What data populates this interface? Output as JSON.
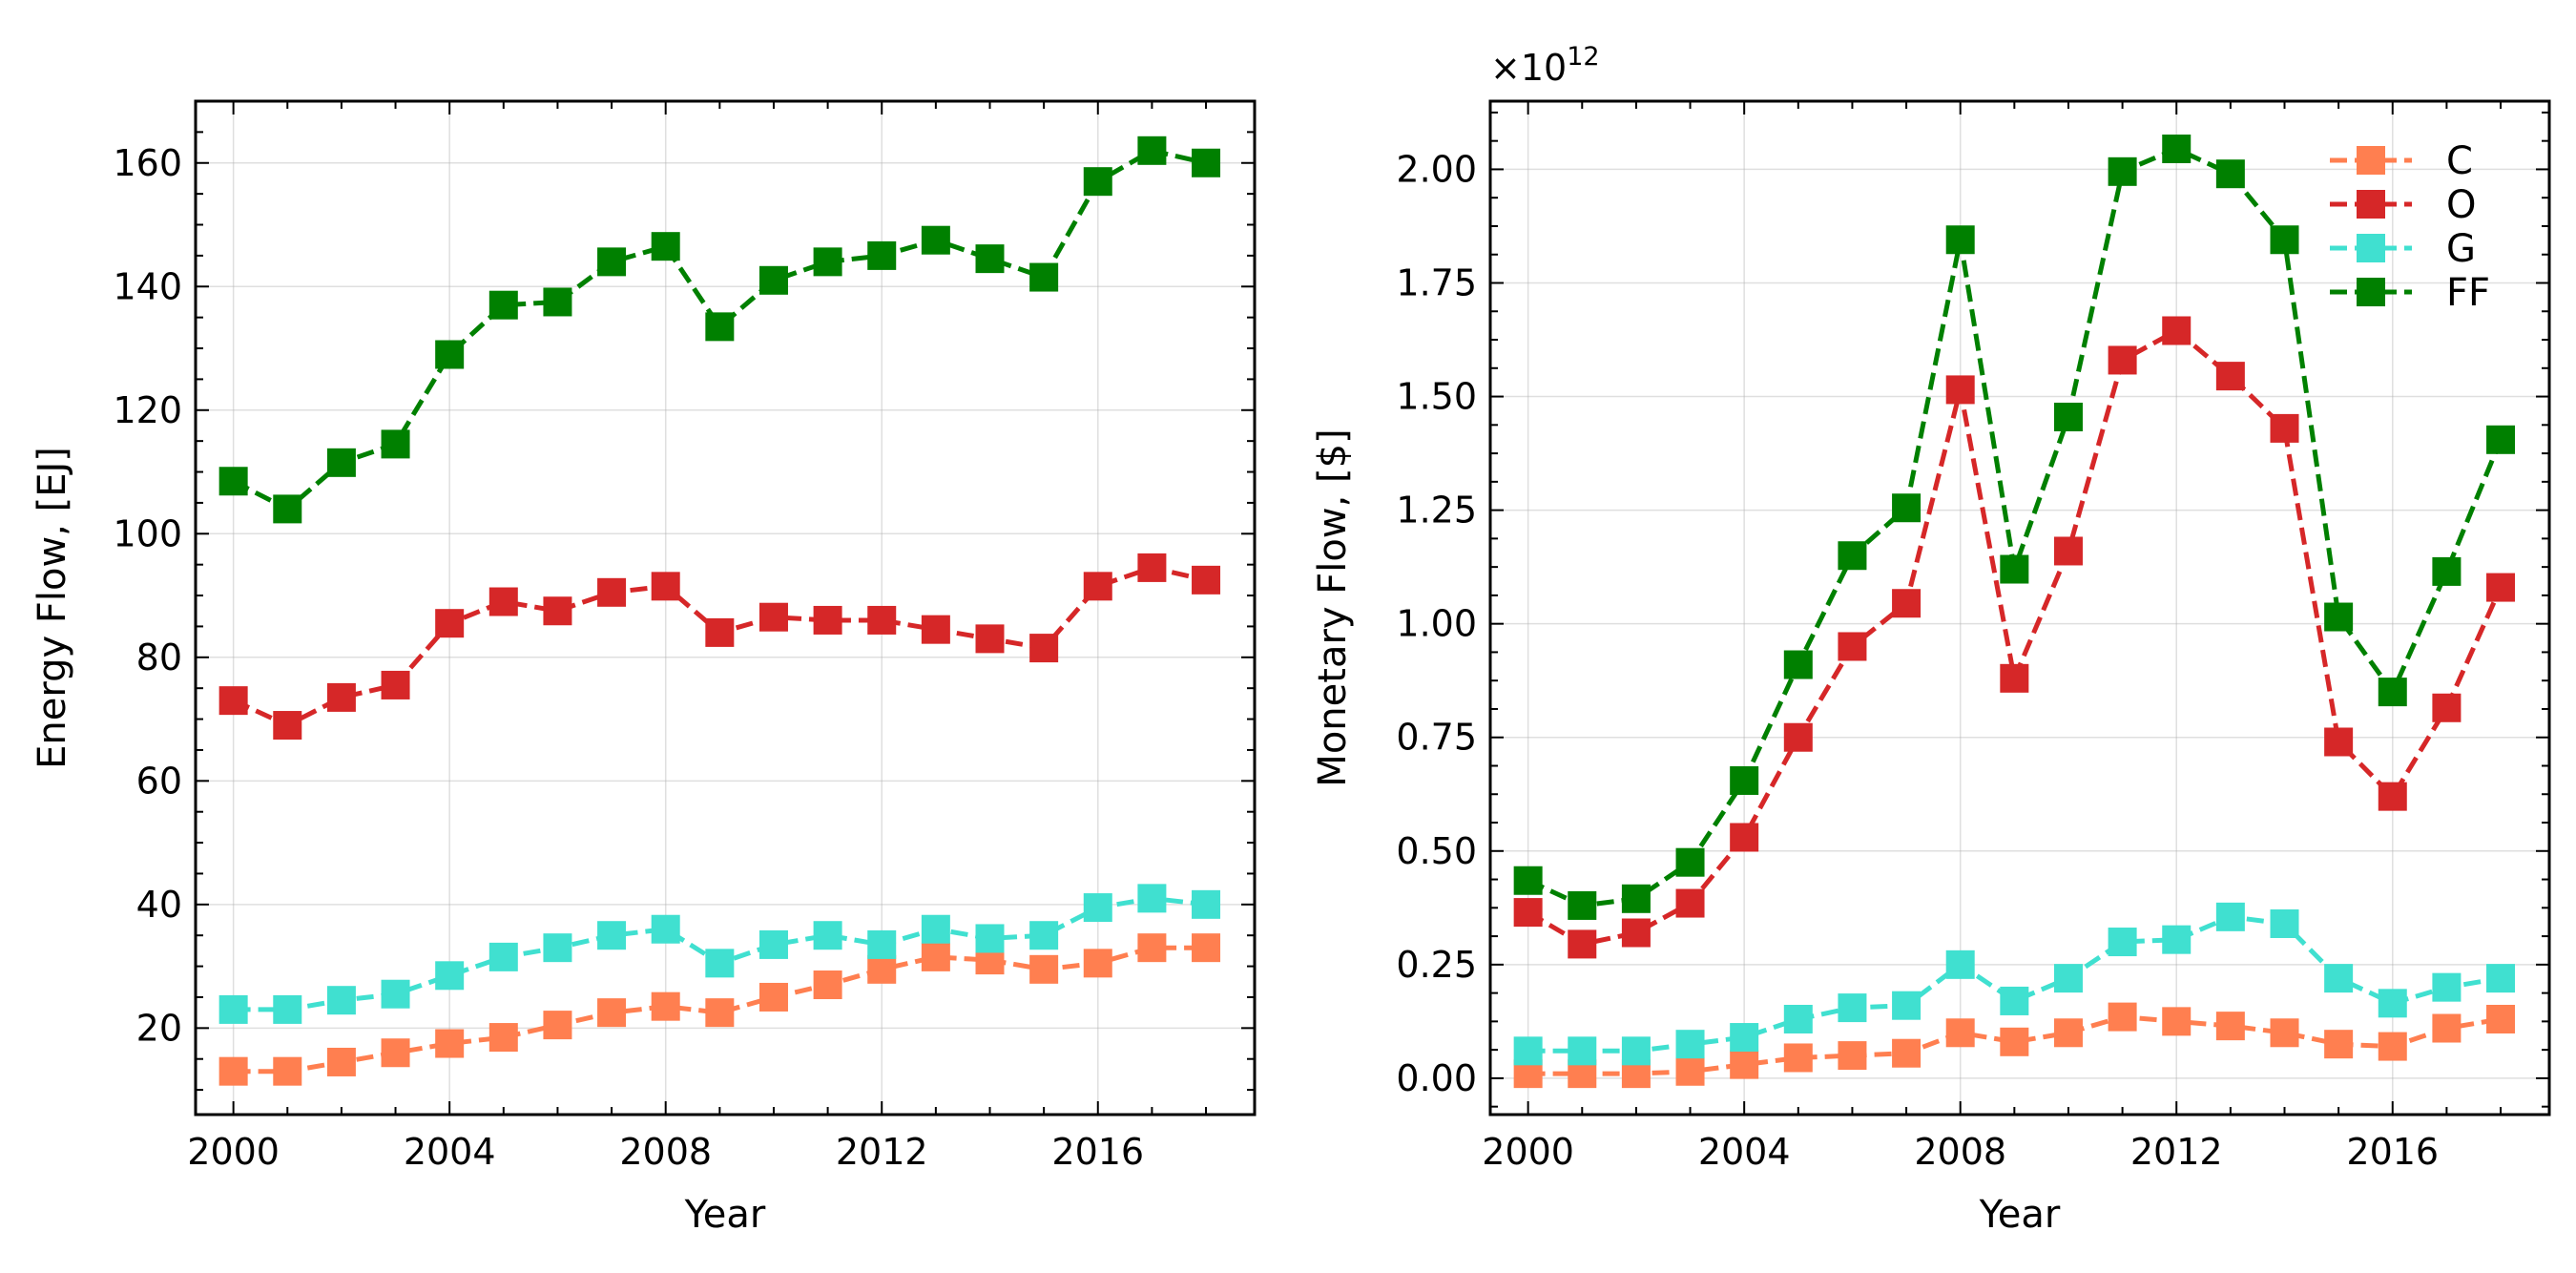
{
  "chart_data": [
    {
      "type": "line",
      "xlabel": "Year",
      "ylabel": "Energy Flow, [EJ]",
      "xlim": [
        1999.3,
        2018.9
      ],
      "ylim": [
        6,
        170
      ],
      "xticks": [
        2000,
        2004,
        2008,
        2012,
        2016
      ],
      "yticks": [
        20,
        40,
        60,
        80,
        100,
        120,
        140,
        160
      ],
      "yticklabels": [
        "20",
        "40",
        "60",
        "80",
        "100",
        "120",
        "140",
        "160"
      ],
      "grid": true,
      "marker": "square",
      "linestyle": "dashed",
      "x": [
        2000,
        2001,
        2002,
        2003,
        2004,
        2005,
        2006,
        2007,
        2008,
        2009,
        2010,
        2011,
        2012,
        2013,
        2014,
        2015,
        2016,
        2017,
        2018
      ],
      "series": [
        {
          "color": "#ff7f50",
          "values": [
            13,
            13,
            14.5,
            16,
            17.5,
            18.5,
            20.5,
            22.5,
            23.5,
            22.5,
            25,
            27,
            29.5,
            31.5,
            31,
            29.5,
            30.5,
            33,
            33
          ]
        },
        {
          "color": "#d62728",
          "values": [
            73,
            69,
            73.5,
            75.5,
            85.5,
            89,
            87.5,
            90.5,
            91.5,
            84,
            86.5,
            86,
            86,
            84.5,
            83,
            81.5,
            91.5,
            94.5,
            92.5
          ]
        },
        {
          "color": "#40e0d0",
          "values": [
            23,
            23,
            24.5,
            25.5,
            28.5,
            31.5,
            33,
            35,
            36,
            30.5,
            33.5,
            35,
            33.5,
            36,
            34.5,
            35,
            39.5,
            41,
            40
          ]
        },
        {
          "color": "#008000",
          "values": [
            108.5,
            104,
            111.5,
            114.5,
            129,
            137,
            137.5,
            144,
            146.5,
            133.5,
            141,
            144,
            145,
            147.5,
            144.5,
            141.5,
            157,
            162,
            160
          ]
        }
      ]
    },
    {
      "type": "line",
      "xlabel": "Year",
      "ylabel": "Monetary Flow, [$]",
      "offset_text": "×10",
      "offset_exp": "12",
      "xlim": [
        1999.3,
        2018.9
      ],
      "ylim": [
        -0.08,
        2.15
      ],
      "xticks": [
        2000,
        2004,
        2008,
        2012,
        2016
      ],
      "yticks": [
        0,
        0.25,
        0.5,
        0.75,
        1.0,
        1.25,
        1.5,
        1.75,
        2.0
      ],
      "yticklabels": [
        "0.00",
        "0.25",
        "0.50",
        "0.75",
        "1.00",
        "1.25",
        "1.50",
        "1.75",
        "2.00"
      ],
      "grid": true,
      "legend_position": "top-right",
      "marker": "square",
      "linestyle": "dashed",
      "x": [
        2000,
        2001,
        2002,
        2003,
        2004,
        2005,
        2006,
        2007,
        2008,
        2009,
        2010,
        2011,
        2012,
        2013,
        2014,
        2015,
        2016,
        2017,
        2018
      ],
      "series": [
        {
          "name": "C",
          "color": "#ff7f50",
          "values": [
            0.01,
            0.01,
            0.01,
            0.015,
            0.03,
            0.045,
            0.05,
            0.055,
            0.1,
            0.08,
            0.1,
            0.135,
            0.125,
            0.115,
            0.1,
            0.075,
            0.07,
            0.11,
            0.13
          ]
        },
        {
          "name": "O",
          "color": "#d62728",
          "values": [
            0.365,
            0.295,
            0.32,
            0.385,
            0.53,
            0.75,
            0.95,
            1.045,
            1.515,
            0.88,
            1.16,
            1.58,
            1.645,
            1.545,
            1.43,
            0.74,
            0.62,
            0.815,
            1.08
          ]
        },
        {
          "name": "G",
          "color": "#40e0d0",
          "values": [
            0.06,
            0.06,
            0.06,
            0.075,
            0.09,
            0.13,
            0.155,
            0.16,
            0.25,
            0.17,
            0.22,
            0.3,
            0.305,
            0.355,
            0.34,
            0.22,
            0.165,
            0.2,
            0.22
          ]
        },
        {
          "name": "FF",
          "color": "#008000",
          "values": [
            0.435,
            0.38,
            0.395,
            0.475,
            0.655,
            0.91,
            1.15,
            1.255,
            1.845,
            1.12,
            1.455,
            1.995,
            2.045,
            1.99,
            1.845,
            1.015,
            0.85,
            1.115,
            1.405
          ]
        }
      ]
    }
  ]
}
